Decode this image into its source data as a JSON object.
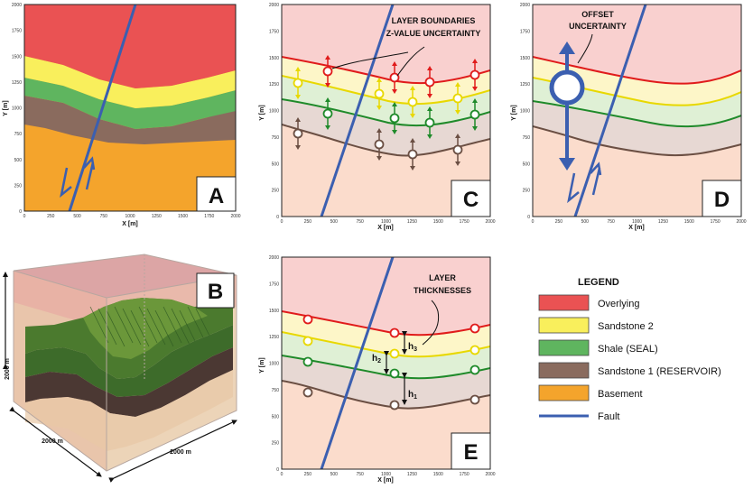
{
  "axis_tick_labels": [
    "0",
    "250",
    "500",
    "750",
    "1000",
    "1250",
    "1500",
    "1750",
    "2000"
  ],
  "panels": {
    "A": {
      "label": "A",
      "xlabel": "X [m]",
      "ylabel": "Y [m]"
    },
    "B": {
      "label": "B",
      "dim_vertical": "2000 m",
      "dim_left": "2000 m",
      "dim_right": "2000 m"
    },
    "C": {
      "label": "C",
      "xlabel": "X [m]",
      "ylabel": "Y [m]",
      "annotation": [
        "LAYER BOUNDARIES",
        "Z-VALUE UNCERTAINTY"
      ]
    },
    "D": {
      "label": "D",
      "xlabel": "X [m]",
      "ylabel": "Y [m]",
      "annotation": [
        "OFFSET",
        "UNCERTAINTY"
      ]
    },
    "E": {
      "label": "E",
      "xlabel": "X [m]",
      "ylabel": "Y [m]",
      "annotation": [
        "LAYER",
        "THICKNESSES"
      ],
      "h1": "h",
      "h1_sub": "1",
      "h2": "h",
      "h2_sub": "2",
      "h3": "h",
      "h3_sub": "3"
    }
  },
  "legend": {
    "title": "LEGEND",
    "items": [
      {
        "label": "Overlying",
        "color": "#ea5253"
      },
      {
        "label": "Sandstone 2",
        "color": "#f9ef5c"
      },
      {
        "label": "Shale (SEAL)",
        "color": "#5fb55f"
      },
      {
        "label": "Sandstone 1 (RESERVOIR)",
        "color": "#8a6b5e"
      },
      {
        "label": "Basement",
        "color": "#f4a42c"
      }
    ],
    "fault": {
      "label": "Fault",
      "color": "#3b5fb0"
    }
  },
  "colors": {
    "overlying": "#ea5253",
    "sandstone2": "#f9ef5c",
    "shale": "#5fb55f",
    "sandstone1": "#8a6b5e",
    "basement": "#f4a42c",
    "fault": "#3b5fb0",
    "boundary_red": "#e01b1b",
    "boundary_yellow": "#e8d800",
    "boundary_green": "#1f8a2a",
    "boundary_brown": "#6b4f43"
  }
}
